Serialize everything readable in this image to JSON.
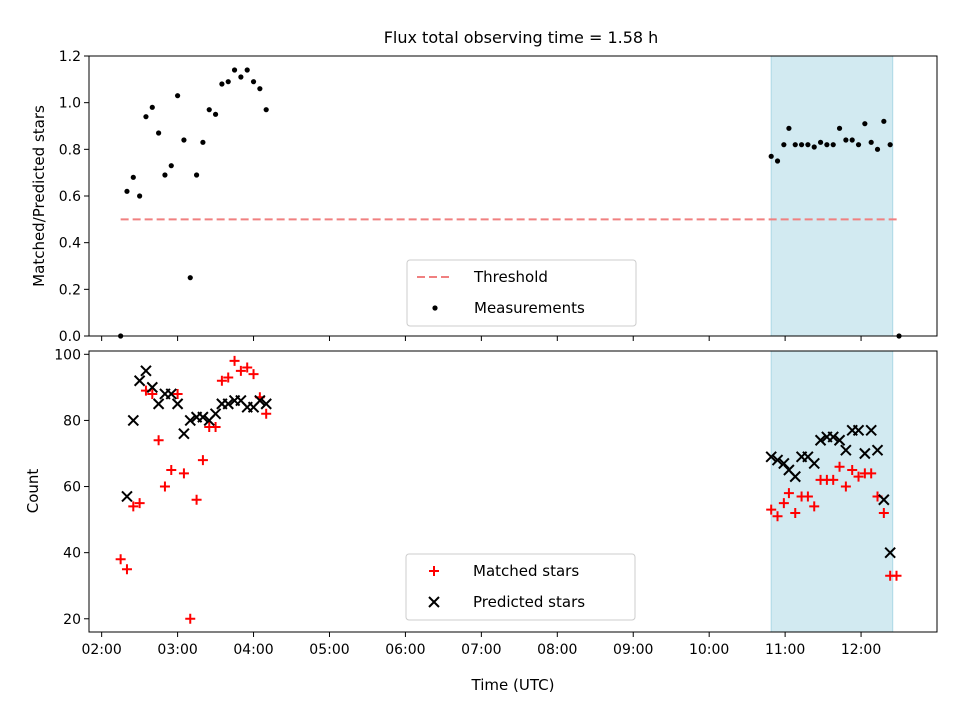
{
  "title": "Flux total observing time = 1.58 h",
  "chart_data": [
    {
      "type": "scatter",
      "ylabel": "Matched/Predicted stars",
      "xlabel": "",
      "ylim": [
        0,
        1.2
      ],
      "yticks": [
        "0.0",
        "0.2",
        "0.4",
        "0.6",
        "0.8",
        "1.0",
        "1.2"
      ],
      "shaded_region": {
        "x_start": "10:49",
        "x_end": "12:25",
        "color": "#add8e6"
      },
      "legend_position": "lower-center",
      "threshold": {
        "name": "Threshold",
        "value": 0.5,
        "x_start": "02:15",
        "x_end": "12:30",
        "color": "#f08080",
        "style": "dashed"
      },
      "series": [
        {
          "name": "Measurements",
          "color": "#000000",
          "marker": "dot",
          "points": [
            [
              "02:15",
              0.0
            ],
            [
              "02:20",
              0.62
            ],
            [
              "02:25",
              0.68
            ],
            [
              "02:30",
              0.6
            ],
            [
              "02:35",
              0.94
            ],
            [
              "02:40",
              0.98
            ],
            [
              "02:45",
              0.87
            ],
            [
              "02:50",
              0.69
            ],
            [
              "02:55",
              0.73
            ],
            [
              "03:00",
              1.03
            ],
            [
              "03:05",
              0.84
            ],
            [
              "03:10",
              0.25
            ],
            [
              "03:15",
              0.69
            ],
            [
              "03:20",
              0.83
            ],
            [
              "03:25",
              0.97
            ],
            [
              "03:30",
              0.95
            ],
            [
              "03:35",
              1.08
            ],
            [
              "03:40",
              1.09
            ],
            [
              "03:45",
              1.14
            ],
            [
              "03:50",
              1.11
            ],
            [
              "03:55",
              1.14
            ],
            [
              "04:00",
              1.09
            ],
            [
              "04:05",
              1.06
            ],
            [
              "04:10",
              0.97
            ],
            [
              "10:49",
              0.77
            ],
            [
              "10:54",
              0.75
            ],
            [
              "10:59",
              0.82
            ],
            [
              "11:03",
              0.89
            ],
            [
              "11:08",
              0.82
            ],
            [
              "11:13",
              0.82
            ],
            [
              "11:18",
              0.82
            ],
            [
              "11:23",
              0.81
            ],
            [
              "11:28",
              0.83
            ],
            [
              "11:33",
              0.82
            ],
            [
              "11:38",
              0.82
            ],
            [
              "11:43",
              0.89
            ],
            [
              "11:48",
              0.84
            ],
            [
              "11:53",
              0.84
            ],
            [
              "11:58",
              0.82
            ],
            [
              "12:03",
              0.91
            ],
            [
              "12:08",
              0.83
            ],
            [
              "12:13",
              0.8
            ],
            [
              "12:18",
              0.92
            ],
            [
              "12:23",
              0.82
            ],
            [
              "12:30",
              0.0
            ]
          ]
        }
      ]
    },
    {
      "type": "scatter",
      "ylabel": "Count",
      "xlabel": "Time (UTC)",
      "ylim": [
        16,
        101
      ],
      "yticks": [
        "20",
        "40",
        "60",
        "80",
        "100"
      ],
      "xticks": [
        "02:00",
        "03:00",
        "04:00",
        "05:00",
        "06:00",
        "07:00",
        "08:00",
        "09:00",
        "10:00",
        "11:00",
        "12:00"
      ],
      "xlim": [
        "01:50",
        "13:00"
      ],
      "shaded_region": {
        "x_start": "10:49",
        "x_end": "12:25",
        "color": "#add8e6"
      },
      "legend_position": "lower-center",
      "series": [
        {
          "name": "Matched stars",
          "color": "#ff0000",
          "marker": "plus",
          "points": [
            [
              "02:15",
              38
            ],
            [
              "02:20",
              35
            ],
            [
              "02:25",
              54
            ],
            [
              "02:30",
              55
            ],
            [
              "02:35",
              89
            ],
            [
              "02:40",
              88
            ],
            [
              "02:45",
              74
            ],
            [
              "02:50",
              60
            ],
            [
              "02:55",
              65
            ],
            [
              "03:00",
              88
            ],
            [
              "03:05",
              64
            ],
            [
              "03:10",
              20
            ],
            [
              "03:15",
              56
            ],
            [
              "03:20",
              68
            ],
            [
              "03:25",
              78
            ],
            [
              "03:30",
              78
            ],
            [
              "03:35",
              92
            ],
            [
              "03:40",
              93
            ],
            [
              "03:45",
              98
            ],
            [
              "03:50",
              95
            ],
            [
              "03:55",
              96
            ],
            [
              "04:00",
              94
            ],
            [
              "04:05",
              87
            ],
            [
              "04:10",
              82
            ],
            [
              "10:49",
              53
            ],
            [
              "10:54",
              51
            ],
            [
              "10:59",
              55
            ],
            [
              "11:03",
              58
            ],
            [
              "11:08",
              52
            ],
            [
              "11:13",
              57
            ],
            [
              "11:18",
              57
            ],
            [
              "11:23",
              54
            ],
            [
              "11:28",
              62
            ],
            [
              "11:33",
              62
            ],
            [
              "11:38",
              62
            ],
            [
              "11:43",
              66
            ],
            [
              "11:48",
              60
            ],
            [
              "11:53",
              65
            ],
            [
              "11:58",
              63
            ],
            [
              "12:03",
              64
            ],
            [
              "12:08",
              64
            ],
            [
              "12:13",
              57
            ],
            [
              "12:18",
              52
            ],
            [
              "12:23",
              33
            ],
            [
              "12:28",
              33
            ]
          ]
        },
        {
          "name": "Predicted stars",
          "color": "#000000",
          "marker": "x",
          "points": [
            [
              "02:20",
              57
            ],
            [
              "02:25",
              80
            ],
            [
              "02:30",
              92
            ],
            [
              "02:35",
              95
            ],
            [
              "02:40",
              90
            ],
            [
              "02:45",
              85
            ],
            [
              "02:50",
              88
            ],
            [
              "02:55",
              88
            ],
            [
              "03:00",
              85
            ],
            [
              "03:05",
              76
            ],
            [
              "03:10",
              80
            ],
            [
              "03:15",
              81
            ],
            [
              "03:20",
              81
            ],
            [
              "03:25",
              80
            ],
            [
              "03:30",
              82
            ],
            [
              "03:35",
              85
            ],
            [
              "03:40",
              85
            ],
            [
              "03:45",
              86
            ],
            [
              "03:50",
              86
            ],
            [
              "03:55",
              84
            ],
            [
              "04:00",
              84
            ],
            [
              "04:05",
              86
            ],
            [
              "04:10",
              85
            ],
            [
              "10:49",
              69
            ],
            [
              "10:54",
              68
            ],
            [
              "10:59",
              67
            ],
            [
              "11:03",
              65
            ],
            [
              "11:08",
              63
            ],
            [
              "11:13",
              69
            ],
            [
              "11:18",
              69
            ],
            [
              "11:23",
              67
            ],
            [
              "11:28",
              74
            ],
            [
              "11:33",
              75
            ],
            [
              "11:38",
              75
            ],
            [
              "11:43",
              74
            ],
            [
              "11:48",
              71
            ],
            [
              "11:53",
              77
            ],
            [
              "11:58",
              77
            ],
            [
              "12:03",
              70
            ],
            [
              "12:08",
              77
            ],
            [
              "12:13",
              71
            ],
            [
              "12:18",
              56
            ],
            [
              "12:23",
              40
            ]
          ]
        }
      ]
    }
  ]
}
